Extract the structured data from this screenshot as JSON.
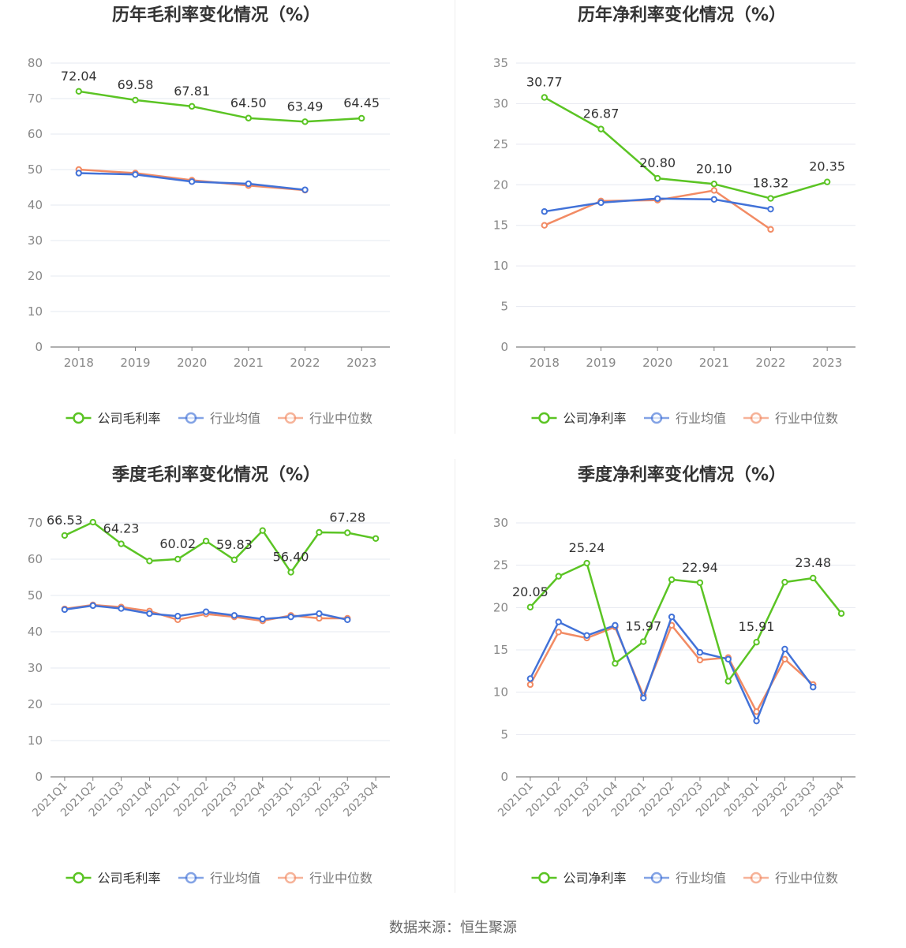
{
  "source_label": "数据来源：恒生聚源",
  "colors": {
    "company": "#5bc424",
    "avg": "#4272d8",
    "median": "#f28b64",
    "grid": "#e6e8f0",
    "axis": "#888888",
    "title": "#333333"
  },
  "chart_data": [
    {
      "type": "line",
      "title": "历年毛利率变化情况（%）",
      "categories": [
        "2018",
        "2019",
        "2020",
        "2021",
        "2022",
        "2023"
      ],
      "ylim": [
        0,
        80
      ],
      "yticks": [
        0,
        10,
        20,
        30,
        40,
        50,
        60,
        70,
        80
      ],
      "legend_position": "bottom",
      "series": [
        {
          "name": "公司毛利率",
          "color": "#5bc424",
          "values": [
            72.04,
            69.58,
            67.81,
            64.5,
            63.49,
            64.45
          ],
          "labels": [
            "72.04",
            "69.58",
            "67.81",
            "64.50",
            "63.49",
            "64.45"
          ]
        },
        {
          "name": "行业均值",
          "color": "#4272d8",
          "values": [
            49.0,
            48.6,
            46.6,
            46.0,
            44.3,
            null
          ]
        },
        {
          "name": "行业中位数",
          "color": "#f28b64",
          "values": [
            50.0,
            49.0,
            47.0,
            45.5,
            44.2,
            null
          ]
        }
      ]
    },
    {
      "type": "line",
      "title": "历年净利率变化情况（%）",
      "categories": [
        "2018",
        "2019",
        "2020",
        "2021",
        "2022",
        "2023"
      ],
      "ylim": [
        0,
        35
      ],
      "yticks": [
        0,
        5,
        10,
        15,
        20,
        25,
        30,
        35
      ],
      "legend_position": "bottom",
      "series": [
        {
          "name": "公司净利率",
          "color": "#5bc424",
          "values": [
            30.77,
            26.87,
            20.8,
            20.1,
            18.32,
            20.35
          ],
          "labels": [
            "30.77",
            "26.87",
            "20.80",
            "20.10",
            "18.32",
            "20.35"
          ]
        },
        {
          "name": "行业均值",
          "color": "#4272d8",
          "values": [
            16.7,
            17.8,
            18.3,
            18.2,
            17.0,
            null
          ]
        },
        {
          "name": "行业中位数",
          "color": "#f28b64",
          "values": [
            15.0,
            18.0,
            18.1,
            19.3,
            14.5,
            null
          ]
        }
      ]
    },
    {
      "type": "line",
      "title": "季度毛利率变化情况（%）",
      "categories": [
        "2021Q1",
        "2021Q2",
        "2021Q3",
        "2021Q4",
        "2022Q1",
        "2022Q2",
        "2022Q3",
        "2022Q4",
        "2023Q1",
        "2023Q2",
        "2023Q3",
        "2023Q4"
      ],
      "ylim": [
        0,
        70
      ],
      "yticks": [
        0,
        10,
        20,
        30,
        40,
        50,
        60,
        70
      ],
      "legend_position": "bottom",
      "series": [
        {
          "name": "公司毛利率",
          "color": "#5bc424",
          "values": [
            66.53,
            70.2,
            64.23,
            59.5,
            60.02,
            65.0,
            59.83,
            67.9,
            56.4,
            67.4,
            67.28,
            65.7
          ],
          "labels": [
            "66.53",
            "",
            "64.23",
            "",
            "60.02",
            "",
            "59.83",
            "",
            "56.40",
            "",
            "67.28",
            ""
          ]
        },
        {
          "name": "行业均值",
          "color": "#4272d8",
          "values": [
            46.1,
            47.2,
            46.4,
            45.0,
            44.3,
            45.5,
            44.5,
            43.5,
            44.1,
            45.0,
            43.3,
            null
          ]
        },
        {
          "name": "行业中位数",
          "color": "#f28b64",
          "values": [
            46.3,
            47.4,
            46.8,
            45.7,
            43.3,
            44.9,
            44.1,
            43.0,
            44.5,
            43.7,
            43.7,
            null
          ]
        }
      ]
    },
    {
      "type": "line",
      "title": "季度净利率变化情况（%）",
      "categories": [
        "2021Q1",
        "2021Q2",
        "2021Q3",
        "2021Q4",
        "2022Q1",
        "2022Q2",
        "2022Q3",
        "2022Q4",
        "2023Q1",
        "2023Q2",
        "2023Q3",
        "2023Q4"
      ],
      "ylim": [
        0,
        30
      ],
      "yticks": [
        0,
        5,
        10,
        15,
        20,
        25,
        30
      ],
      "legend_position": "bottom",
      "series": [
        {
          "name": "公司净利率",
          "color": "#5bc424",
          "values": [
            20.05,
            23.7,
            25.24,
            13.4,
            15.97,
            23.3,
            22.94,
            11.3,
            15.91,
            23.0,
            23.48,
            19.3
          ],
          "labels": [
            "20.05",
            "",
            "25.24",
            "",
            "15.97",
            "",
            "22.94",
            "",
            "15.91",
            "",
            "23.48",
            ""
          ]
        },
        {
          "name": "行业均值",
          "color": "#4272d8",
          "values": [
            11.6,
            18.3,
            16.7,
            17.9,
            9.3,
            18.9,
            14.7,
            13.9,
            6.6,
            15.1,
            10.6,
            null
          ]
        },
        {
          "name": "行业中位数",
          "color": "#f28b64",
          "values": [
            10.9,
            17.1,
            16.4,
            17.7,
            9.6,
            17.9,
            13.8,
            14.1,
            7.7,
            13.9,
            10.9,
            null
          ]
        }
      ]
    }
  ]
}
